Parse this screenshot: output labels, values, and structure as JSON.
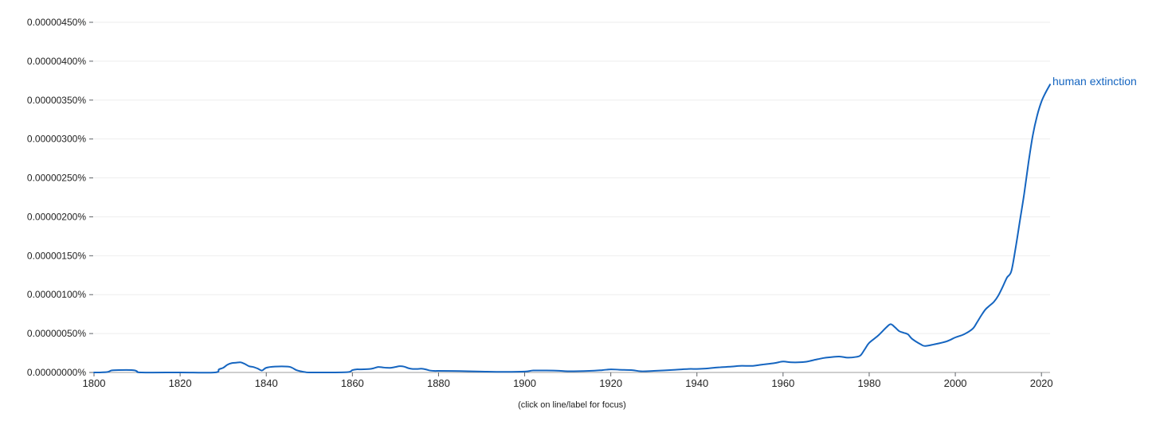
{
  "chart_data": {
    "type": "line",
    "title": "",
    "xlabel": "",
    "ylabel": "",
    "xlim": [
      1800,
      2022
    ],
    "ylim": [
      0,
      4.5e-06
    ],
    "grid": true,
    "y_ticks": [
      0,
      5e-07,
      1e-06,
      1.5e-06,
      2e-06,
      2.5e-06,
      3e-06,
      3.5e-06,
      4e-06,
      4.5e-06
    ],
    "y_tick_labels": [
      "0.00000000%",
      "0.00000050%",
      "0.00000100%",
      "0.00000150%",
      "0.00000200%",
      "0.00000250%",
      "0.00000300%",
      "0.00000350%",
      "0.00000400%",
      "0.00000450%"
    ],
    "x_ticks": [
      1800,
      1820,
      1840,
      1860,
      1880,
      1900,
      1920,
      1940,
      1960,
      1980,
      2000,
      2020
    ],
    "x_tick_labels": [
      "1800",
      "1820",
      "1840",
      "1860",
      "1880",
      "1900",
      "1920",
      "1940",
      "1960",
      "1980",
      "2000",
      "2020"
    ],
    "series": [
      {
        "name": "human extinction",
        "color": "#1565c0",
        "x": [
          1800,
          1803,
          1804,
          1805,
          1809,
          1810,
          1811,
          1820,
          1828,
          1829,
          1830,
          1831,
          1832,
          1833,
          1834,
          1835,
          1836,
          1837,
          1838,
          1839,
          1840,
          1842,
          1845,
          1846,
          1847,
          1848,
          1849,
          1850,
          1855,
          1859,
          1860,
          1861,
          1862,
          1864,
          1865,
          1866,
          1867,
          1868,
          1869,
          1870,
          1871,
          1872,
          1873,
          1874,
          1875,
          1876,
          1877,
          1878,
          1879,
          1880,
          1885,
          1890,
          1895,
          1900,
          1902,
          1905,
          1908,
          1910,
          1915,
          1918,
          1920,
          1922,
          1925,
          1927,
          1930,
          1935,
          1938,
          1940,
          1942,
          1945,
          1948,
          1950,
          1953,
          1955,
          1958,
          1960,
          1962,
          1965,
          1968,
          1970,
          1973,
          1975,
          1977,
          1978,
          1979,
          1980,
          1982,
          1984,
          1985,
          1986,
          1987,
          1988,
          1989,
          1990,
          1992,
          1993,
          1995,
          1998,
          2000,
          2002,
          2004,
          2005,
          2006,
          2007,
          2008,
          2009,
          2010,
          2011,
          2012,
          2013,
          2014,
          2015,
          2016,
          2017,
          2018,
          2019,
          2020,
          2021,
          2022
        ],
        "values": [
          0.0,
          5e-09,
          2.5e-08,
          3e-08,
          3e-08,
          1.5e-08,
          0.0,
          0.0,
          0.0,
          4e-08,
          6e-08,
          1e-07,
          1.2e-07,
          1.25e-07,
          1.3e-07,
          1.1e-07,
          8e-08,
          7e-08,
          5e-08,
          2.5e-08,
          6e-08,
          7.5e-08,
          7.5e-08,
          6e-08,
          3e-08,
          1.5e-08,
          5e-09,
          0.0,
          0.0,
          5e-09,
          3e-08,
          4e-08,
          4e-08,
          4.5e-08,
          5.5e-08,
          7e-08,
          6.5e-08,
          6e-08,
          6e-08,
          7e-08,
          8e-08,
          7.5e-08,
          5.5e-08,
          4.5e-08,
          4.5e-08,
          4.8e-08,
          4e-08,
          2.5e-08,
          2e-08,
          2e-08,
          1.8e-08,
          1.2e-08,
          8e-09,
          1.2e-08,
          2.5e-08,
          2.5e-08,
          2.2e-08,
          1.5e-08,
          2e-08,
          3e-08,
          4e-08,
          3.5e-08,
          3e-08,
          1.5e-08,
          2e-08,
          3.5e-08,
          4.5e-08,
          4.5e-08,
          5e-08,
          6.5e-08,
          7.5e-08,
          8.5e-08,
          8.5e-08,
          1e-07,
          1.2e-07,
          1.4e-07,
          1.3e-07,
          1.35e-07,
          1.7e-07,
          1.9e-07,
          2.05e-07,
          1.9e-07,
          2e-07,
          2.2e-07,
          3e-07,
          3.8e-07,
          4.7e-07,
          5.8e-07,
          6.2e-07,
          5.8e-07,
          5.3e-07,
          5.1e-07,
          4.9e-07,
          4.3e-07,
          3.6e-07,
          3.4e-07,
          3.6e-07,
          4e-07,
          4.5e-07,
          4.9e-07,
          5.6e-07,
          6.4e-07,
          7.3e-07,
          8.1e-07,
          8.6e-07,
          9.1e-07,
          9.9e-07,
          1.1e-06,
          1.22e-06,
          1.3e-06,
          1.6e-06,
          1.95e-06,
          2.3e-06,
          2.7e-06,
          3.05e-06,
          3.3e-06,
          3.48e-06,
          3.6e-06,
          3.7e-06
        ]
      }
    ]
  },
  "footnote": "(click on line/label for focus)"
}
